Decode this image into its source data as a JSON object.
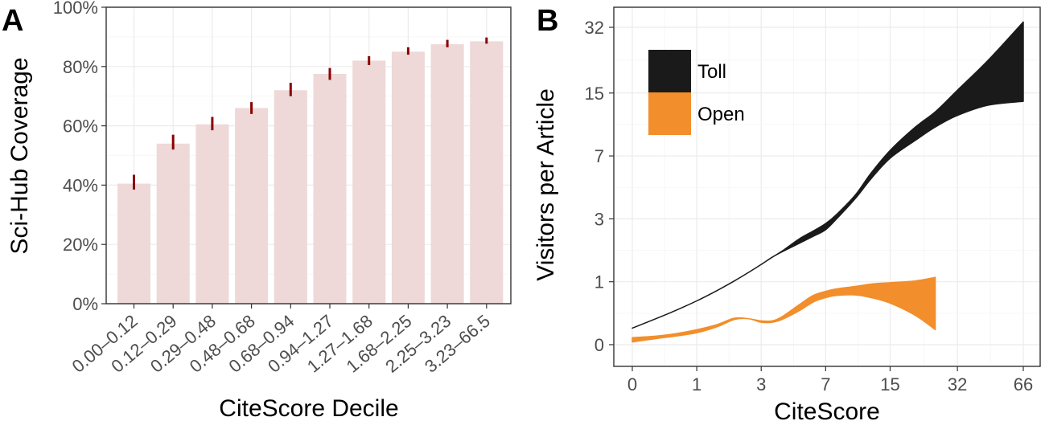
{
  "chart_data": [
    {
      "panel_label": "A",
      "type": "bar",
      "ylabel": "Sci-Hub Coverage",
      "xlabel": "CiteScore Decile",
      "ylim": [
        0,
        100
      ],
      "yticks": [
        "0%",
        "20%",
        "40%",
        "60%",
        "80%",
        "100%"
      ],
      "ytick_values": [
        0,
        20,
        40,
        60,
        80,
        100
      ],
      "categories": [
        "0.00–0.12",
        "0.12–0.29",
        "0.29–0.48",
        "0.48–0.68",
        "0.68–0.94",
        "0.94–1.27",
        "1.27–1.68",
        "1.68–2.25",
        "2.25–3.23",
        "3.23–66.5"
      ],
      "values": [
        40.5,
        54,
        60.5,
        66,
        72,
        77.5,
        82,
        85,
        87.5,
        88.5
      ],
      "error_low": [
        38.5,
        52,
        58.5,
        64,
        70,
        75.5,
        80.5,
        84,
        86.5,
        87.7
      ],
      "error_high": [
        43.5,
        57,
        63,
        68,
        74.5,
        79.5,
        83.5,
        86.5,
        89,
        89.8
      ],
      "bar_color": "#eed8d8",
      "error_color": "#8b0000",
      "grid": true
    },
    {
      "panel_label": "B",
      "type": "area",
      "ylabel": "Visitors per Article",
      "xlabel": "CiteScore",
      "scale": "pseudo-log",
      "xticks": [
        "0",
        "1",
        "3",
        "7",
        "15",
        "32",
        "66"
      ],
      "xtick_values": [
        0,
        1,
        3,
        7,
        15,
        32,
        66
      ],
      "yticks": [
        "0",
        "1",
        "3",
        "7",
        "15",
        "32"
      ],
      "ytick_values": [
        0,
        1,
        3,
        7,
        15,
        32
      ],
      "grid": true,
      "legend_position": "top-left",
      "series": [
        {
          "name": "Toll",
          "color": "#1a1a1a",
          "x": [
            0,
            0.5,
            1,
            1.5,
            2,
            2.5,
            3,
            3.5,
            4,
            5,
            6,
            7,
            8,
            10,
            12,
            15,
            20,
            25,
            32,
            45,
            66
          ],
          "lower": [
            0.2,
            0.42,
            0.62,
            0.82,
            1.02,
            1.22,
            1.42,
            1.62,
            1.78,
            2.05,
            2.3,
            2.55,
            3.0,
            4.0,
            5.2,
            6.8,
            8.5,
            10.0,
            11.5,
            13.0,
            13.6
          ],
          "upper": [
            0.2,
            0.42,
            0.62,
            0.82,
            1.02,
            1.22,
            1.42,
            1.62,
            1.8,
            2.2,
            2.5,
            2.8,
            3.2,
            4.2,
            5.6,
            7.5,
            10.0,
            12.0,
            15.5,
            22.0,
            34.0
          ]
        },
        {
          "name": "Open",
          "color": "#f28e2b",
          "x": [
            0,
            0.3,
            0.6,
            1,
            1.5,
            2,
            2.5,
            3,
            3.5,
            4,
            5,
            6,
            7,
            8,
            10,
            12,
            15,
            20,
            25
          ],
          "lower": [
            0.03,
            0.07,
            0.1,
            0.14,
            0.22,
            0.32,
            0.33,
            0.28,
            0.28,
            0.32,
            0.45,
            0.6,
            0.68,
            0.72,
            0.73,
            0.68,
            0.58,
            0.38,
            0.18
          ],
          "upper": [
            0.08,
            0.1,
            0.13,
            0.18,
            0.25,
            0.34,
            0.33,
            0.3,
            0.3,
            0.36,
            0.55,
            0.72,
            0.8,
            0.85,
            0.9,
            0.95,
            0.98,
            1.02,
            1.1
          ]
        }
      ]
    }
  ]
}
